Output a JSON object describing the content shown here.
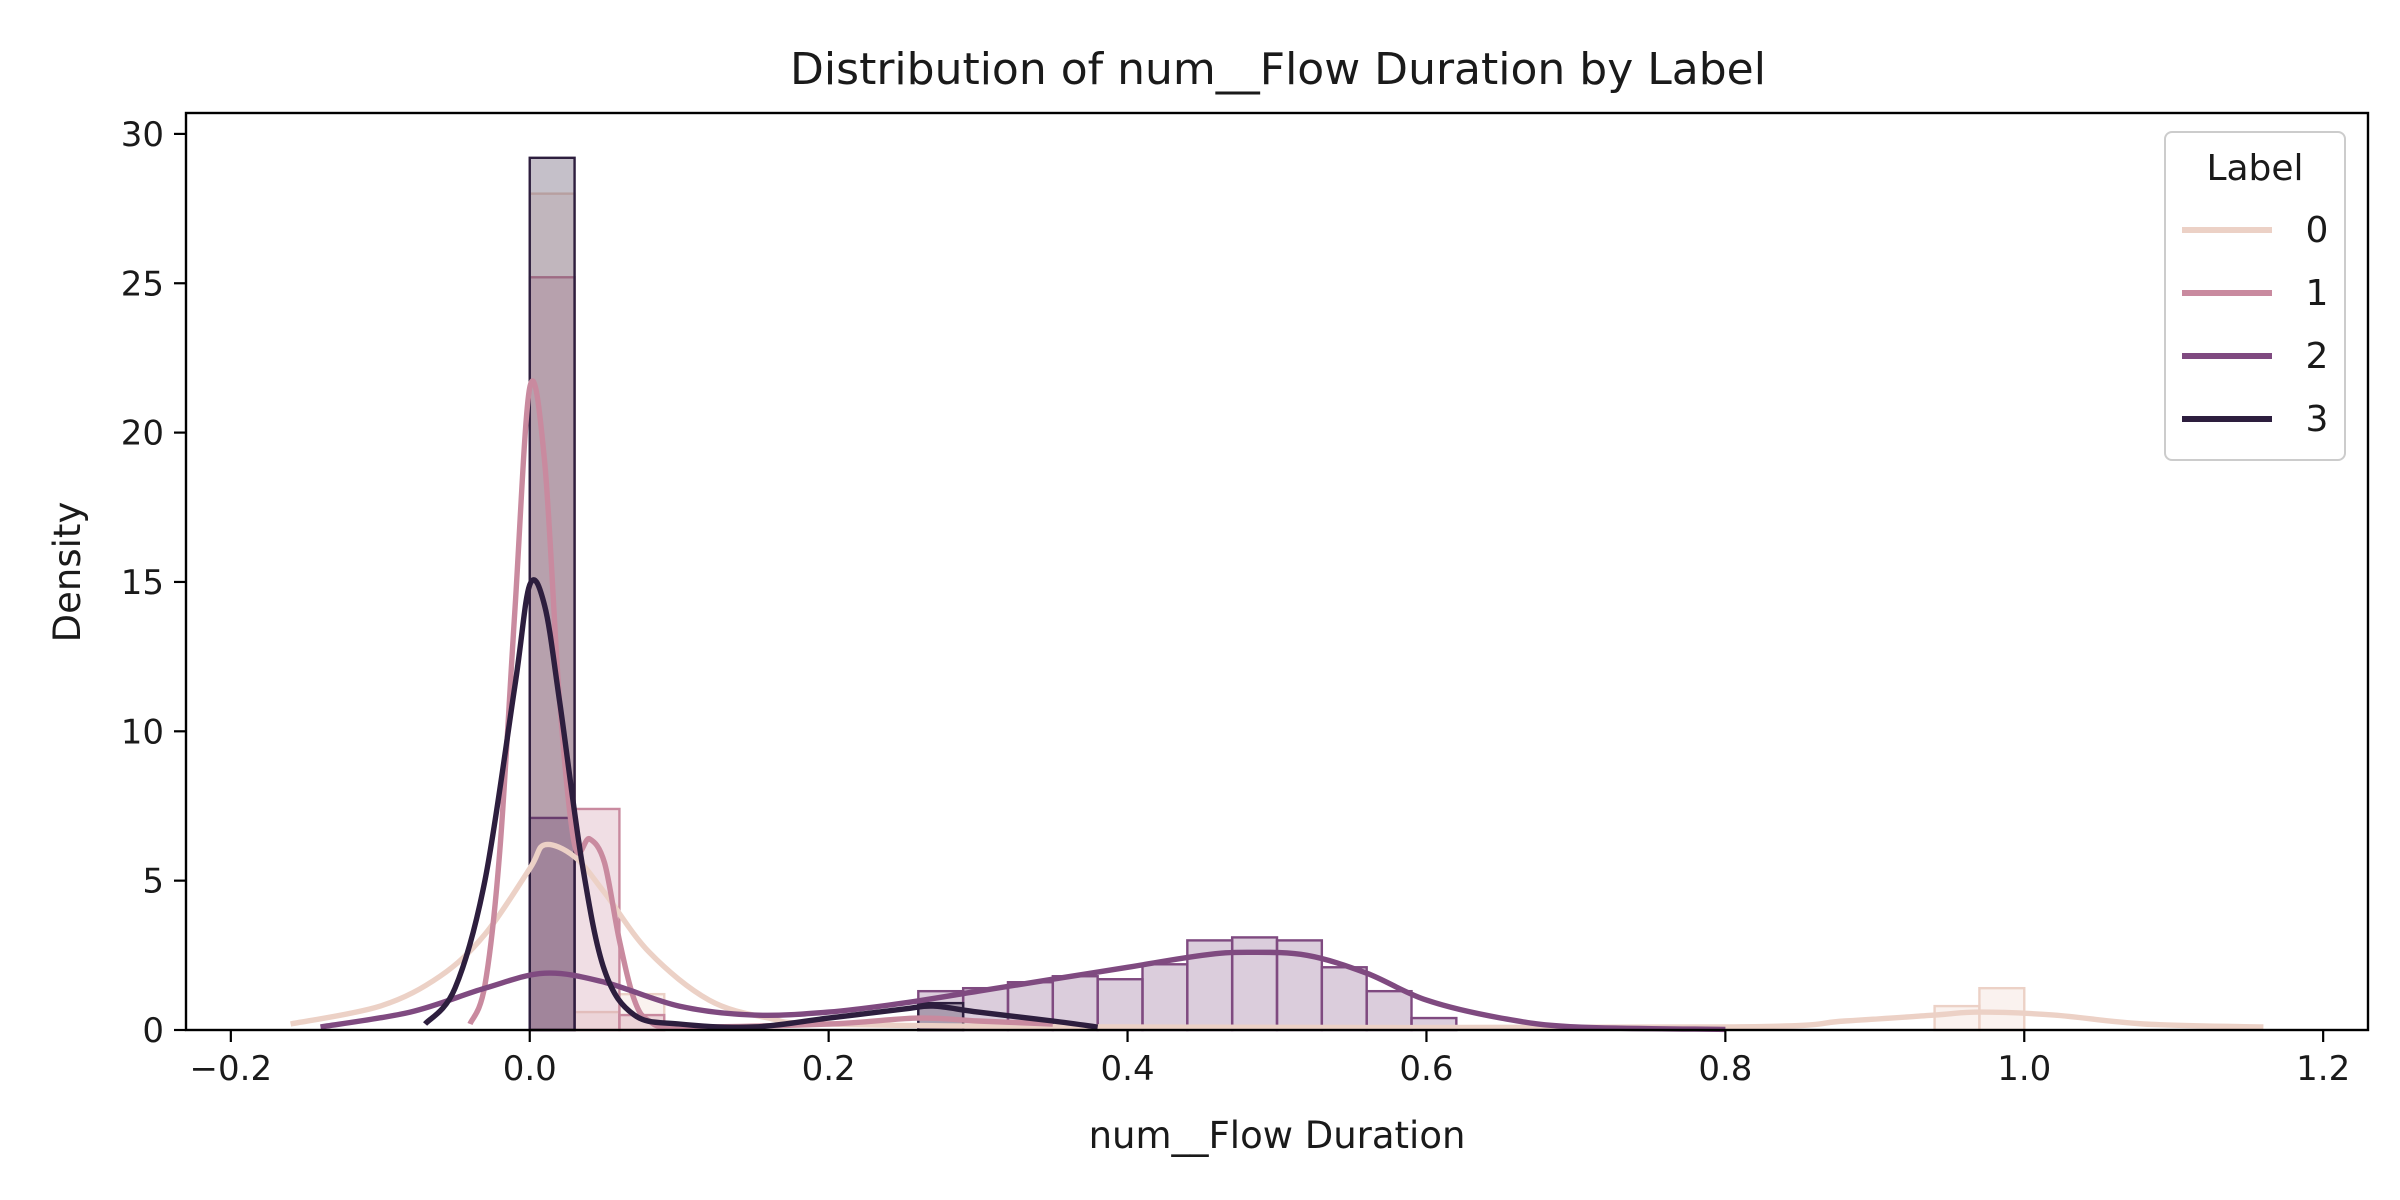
{
  "chart_data": {
    "type": "histogram+kde",
    "title": "Distribution of num__Flow Duration by Label",
    "xlabel": "num__Flow Duration",
    "ylabel": "Density",
    "xlim": [
      -0.23,
      1.23
    ],
    "ylim": [
      0,
      30.7
    ],
    "xticks": [
      -0.2,
      0.0,
      0.2,
      0.4,
      0.6,
      0.8,
      1.0,
      1.2
    ],
    "xtick_labels": [
      "−0.2",
      "0.0",
      "0.2",
      "0.4",
      "0.6",
      "0.8",
      "1.0",
      "1.2"
    ],
    "yticks": [
      0,
      5,
      10,
      15,
      20,
      25,
      30
    ],
    "ytick_labels": [
      "0",
      "5",
      "10",
      "15",
      "20",
      "25",
      "30"
    ],
    "grid": false,
    "bin_width": 0.03,
    "legend": {
      "title": "Label",
      "position": "top-right"
    },
    "series": [
      {
        "name": "0",
        "color": "#ecd1c6",
        "hist": [
          {
            "x0": 0.0,
            "x1": 0.03,
            "y": 28.0
          },
          {
            "x0": 0.03,
            "x1": 0.06,
            "y": 0.6
          },
          {
            "x0": 0.06,
            "x1": 0.09,
            "y": 1.2
          },
          {
            "x0": 0.94,
            "x1": 0.97,
            "y": 0.8
          },
          {
            "x0": 0.97,
            "x1": 1.0,
            "y": 1.4
          }
        ],
        "kde": [
          [
            -0.16,
            0.2
          ],
          [
            -0.1,
            0.8
          ],
          [
            -0.06,
            1.8
          ],
          [
            -0.03,
            3.2
          ],
          [
            0.0,
            5.4
          ],
          [
            0.01,
            6.2
          ],
          [
            0.03,
            5.8
          ],
          [
            0.05,
            4.6
          ],
          [
            0.08,
            2.6
          ],
          [
            0.12,
            1.0
          ],
          [
            0.16,
            0.4
          ],
          [
            0.2,
            0.2
          ],
          [
            0.4,
            0.1
          ],
          [
            0.8,
            0.1
          ],
          [
            0.88,
            0.3
          ],
          [
            0.94,
            0.5
          ],
          [
            0.97,
            0.6
          ],
          [
            1.02,
            0.5
          ],
          [
            1.08,
            0.2
          ],
          [
            1.16,
            0.1
          ]
        ]
      },
      {
        "name": "1",
        "color": "#c98a9f",
        "hist": [
          {
            "x0": 0.0,
            "x1": 0.03,
            "y": 25.2
          },
          {
            "x0": 0.03,
            "x1": 0.06,
            "y": 7.4
          },
          {
            "x0": 0.06,
            "x1": 0.09,
            "y": 0.5
          }
        ],
        "kde": [
          [
            -0.04,
            0.2
          ],
          [
            -0.03,
            1.5
          ],
          [
            -0.02,
            6.0
          ],
          [
            -0.01,
            14.0
          ],
          [
            0.0,
            21.5
          ],
          [
            0.01,
            19.0
          ],
          [
            0.02,
            11.0
          ],
          [
            0.03,
            6.2
          ],
          [
            0.04,
            6.4
          ],
          [
            0.05,
            5.6
          ],
          [
            0.06,
            3.0
          ],
          [
            0.07,
            1.0
          ],
          [
            0.08,
            0.3
          ],
          [
            0.1,
            0.1
          ],
          [
            0.2,
            0.2
          ],
          [
            0.26,
            0.4
          ],
          [
            0.3,
            0.3
          ],
          [
            0.35,
            0.2
          ]
        ]
      },
      {
        "name": "2",
        "color": "#7f4a80",
        "hist": [
          {
            "x0": 0.0,
            "x1": 0.03,
            "y": 7.1
          },
          {
            "x0": 0.26,
            "x1": 0.29,
            "y": 1.3
          },
          {
            "x0": 0.29,
            "x1": 0.32,
            "y": 1.4
          },
          {
            "x0": 0.32,
            "x1": 0.35,
            "y": 1.6
          },
          {
            "x0": 0.35,
            "x1": 0.38,
            "y": 1.8
          },
          {
            "x0": 0.38,
            "x1": 0.41,
            "y": 1.7
          },
          {
            "x0": 0.41,
            "x1": 0.44,
            "y": 2.2
          },
          {
            "x0": 0.44,
            "x1": 0.47,
            "y": 3.0
          },
          {
            "x0": 0.47,
            "x1": 0.5,
            "y": 3.1
          },
          {
            "x0": 0.5,
            "x1": 0.53,
            "y": 3.0
          },
          {
            "x0": 0.53,
            "x1": 0.56,
            "y": 2.1
          },
          {
            "x0": 0.56,
            "x1": 0.59,
            "y": 1.3
          },
          {
            "x0": 0.59,
            "x1": 0.62,
            "y": 0.4
          }
        ],
        "kde": [
          [
            -0.14,
            0.1
          ],
          [
            -0.08,
            0.6
          ],
          [
            -0.03,
            1.4
          ],
          [
            0.01,
            1.9
          ],
          [
            0.05,
            1.6
          ],
          [
            0.1,
            0.8
          ],
          [
            0.15,
            0.5
          ],
          [
            0.2,
            0.6
          ],
          [
            0.25,
            0.9
          ],
          [
            0.3,
            1.3
          ],
          [
            0.35,
            1.7
          ],
          [
            0.4,
            2.1
          ],
          [
            0.45,
            2.5
          ],
          [
            0.48,
            2.6
          ],
          [
            0.52,
            2.5
          ],
          [
            0.56,
            1.9
          ],
          [
            0.6,
            1.0
          ],
          [
            0.65,
            0.4
          ],
          [
            0.7,
            0.1
          ],
          [
            0.8,
            0.02
          ]
        ]
      },
      {
        "name": "3",
        "color": "#2d1e3e",
        "hist": [
          {
            "x0": 0.0,
            "x1": 0.03,
            "y": 29.2
          },
          {
            "x0": 0.26,
            "x1": 0.29,
            "y": 0.9
          }
        ],
        "kde": [
          [
            -0.07,
            0.2
          ],
          [
            -0.05,
            1.4
          ],
          [
            -0.03,
            5.0
          ],
          [
            -0.01,
            11.5
          ],
          [
            0.0,
            14.9
          ],
          [
            0.01,
            14.2
          ],
          [
            0.02,
            11.0
          ],
          [
            0.035,
            5.6
          ],
          [
            0.05,
            2.0
          ],
          [
            0.07,
            0.5
          ],
          [
            0.1,
            0.2
          ],
          [
            0.15,
            0.1
          ],
          [
            0.2,
            0.4
          ],
          [
            0.25,
            0.7
          ],
          [
            0.27,
            0.8
          ],
          [
            0.3,
            0.6
          ],
          [
            0.35,
            0.3
          ],
          [
            0.38,
            0.1
          ]
        ]
      }
    ]
  }
}
